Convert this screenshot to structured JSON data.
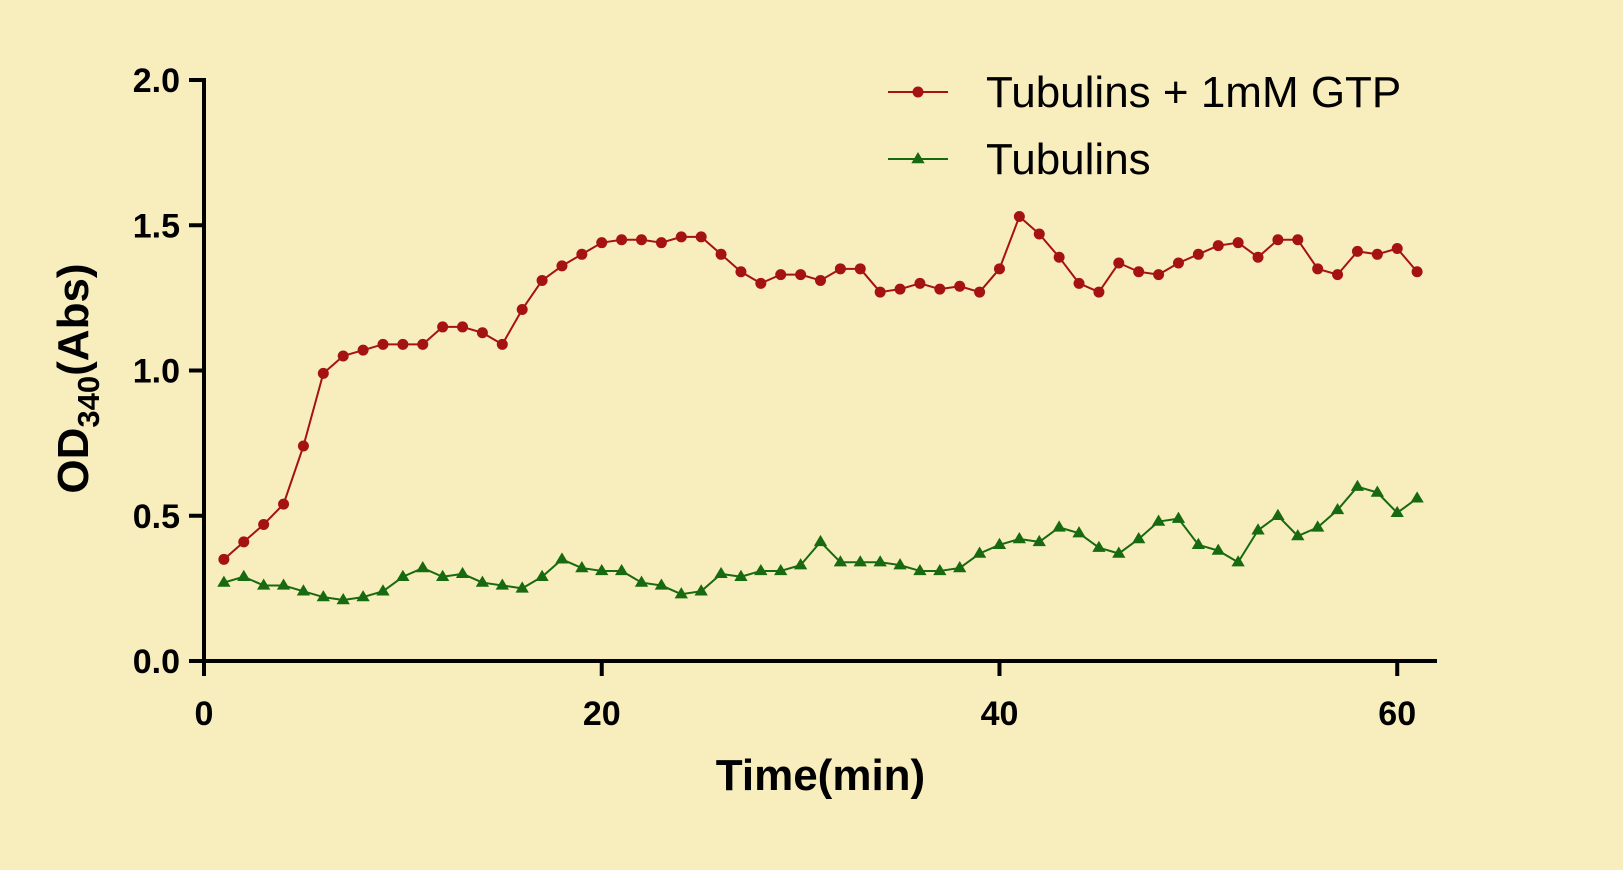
{
  "chart_data": {
    "type": "line",
    "xlabel": "Time(min)",
    "ylabel_main": "OD",
    "ylabel_sub": "340",
    "ylabel_tail": "(Abs)",
    "xlim": [
      0,
      62
    ],
    "ylim": [
      0,
      2
    ],
    "xticks": [
      0,
      20,
      40,
      60
    ],
    "xtick_labels": [
      "0",
      "20",
      "40",
      "60"
    ],
    "yticks": [
      0,
      0.5,
      1,
      1.5,
      2
    ],
    "ytick_labels": [
      "0.0",
      "0.5",
      "1.0",
      "1.5",
      "2.0"
    ],
    "grid": false,
    "legend_position": "top-right",
    "x": [
      1,
      2,
      3,
      4,
      5,
      6,
      7,
      8,
      9,
      10,
      11,
      12,
      13,
      14,
      15,
      16,
      17,
      18,
      19,
      20,
      21,
      22,
      23,
      24,
      25,
      26,
      27,
      28,
      29,
      30,
      31,
      32,
      33,
      34,
      35,
      36,
      37,
      38,
      39,
      40,
      41,
      42,
      43,
      44,
      45,
      46,
      47,
      48,
      49,
      50,
      51,
      52,
      53,
      54,
      55,
      56,
      57,
      58,
      59,
      60,
      61
    ],
    "series": [
      {
        "name": "Tubulins + 1mM GTP",
        "color": "#a51212",
        "marker": "circle",
        "values": [
          0.35,
          0.41,
          0.47,
          0.54,
          0.74,
          0.99,
          1.05,
          1.07,
          1.09,
          1.09,
          1.09,
          1.15,
          1.15,
          1.13,
          1.09,
          1.21,
          1.31,
          1.36,
          1.4,
          1.44,
          1.45,
          1.45,
          1.44,
          1.46,
          1.46,
          1.4,
          1.34,
          1.3,
          1.33,
          1.33,
          1.31,
          1.35,
          1.35,
          1.27,
          1.28,
          1.3,
          1.28,
          1.29,
          1.27,
          1.35,
          1.53,
          1.47,
          1.39,
          1.3,
          1.27,
          1.37,
          1.34,
          1.33,
          1.37,
          1.4,
          1.43,
          1.44,
          1.39,
          1.45,
          1.45,
          1.35,
          1.33,
          1.41,
          1.4,
          1.42,
          1.34
        ]
      },
      {
        "name": "Tubulins",
        "color": "#186a10",
        "marker": "triangle",
        "values": [
          0.27,
          0.29,
          0.26,
          0.26,
          0.24,
          0.22,
          0.21,
          0.22,
          0.24,
          0.29,
          0.32,
          0.29,
          0.3,
          0.27,
          0.26,
          0.25,
          0.29,
          0.35,
          0.32,
          0.31,
          0.31,
          0.27,
          0.26,
          0.23,
          0.24,
          0.3,
          0.29,
          0.31,
          0.31,
          0.33,
          0.41,
          0.34,
          0.34,
          0.34,
          0.33,
          0.31,
          0.31,
          0.32,
          0.37,
          0.4,
          0.42,
          0.41,
          0.46,
          0.44,
          0.39,
          0.37,
          0.42,
          0.48,
          0.49,
          0.4,
          0.38,
          0.34,
          0.45,
          0.5,
          0.43,
          0.46,
          0.52,
          0.6,
          0.58,
          0.51,
          0.56
        ]
      }
    ]
  }
}
